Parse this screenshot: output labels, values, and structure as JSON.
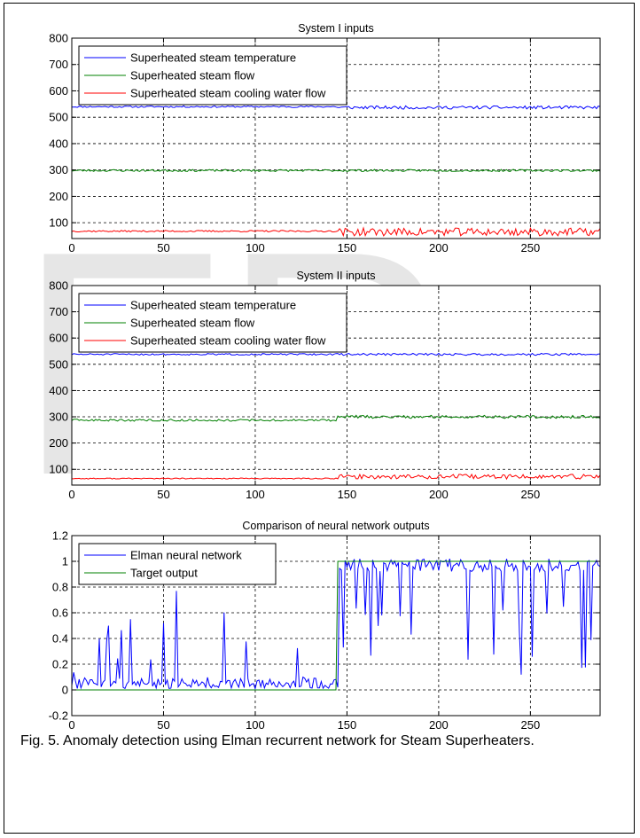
{
  "watermark": "ER",
  "caption": "Fig. 5. Anomaly detection using Elman recurrent network for Steam Superheaters.",
  "chart_data": [
    {
      "type": "line",
      "title": "System I inputs",
      "xlabel": "",
      "ylabel": "",
      "xlim": [
        0,
        288
      ],
      "ylim": [
        40,
        800
      ],
      "xticks": [
        0,
        50,
        100,
        150,
        200,
        250
      ],
      "yticks": [
        100,
        200,
        300,
        400,
        500,
        600,
        700,
        800
      ],
      "grid": true,
      "legend": "top-left",
      "series": [
        {
          "name": "Superheated steam temperature",
          "color": "#0000ff",
          "gen": {
            "base1": 540,
            "base2": 537,
            "noise1": 3,
            "noise2": 6,
            "seed": 11
          }
        },
        {
          "name": "Superheated steam flow",
          "color": "#008000",
          "gen": {
            "base1": 298,
            "base2": 298,
            "noise1": 4,
            "noise2": 4,
            "seed": 23
          }
        },
        {
          "name": "Superheated steam cooling water flow",
          "color": "#ff0000",
          "gen": {
            "base1": 68,
            "base2": 65,
            "noise1": 3,
            "noise2": 15,
            "seed": 37
          }
        }
      ]
    },
    {
      "type": "line",
      "title": "System II inputs",
      "xlabel": "",
      "ylabel": "",
      "xlim": [
        0,
        288
      ],
      "ylim": [
        40,
        800
      ],
      "xticks": [
        0,
        50,
        100,
        150,
        200,
        250
      ],
      "yticks": [
        100,
        200,
        300,
        400,
        500,
        600,
        700,
        800
      ],
      "grid": true,
      "legend": "top-left",
      "series": [
        {
          "name": "Superheated steam temperature",
          "color": "#0000ff",
          "gen": {
            "base1": 538,
            "base2": 538,
            "noise1": 3,
            "noise2": 4,
            "seed": 51
          }
        },
        {
          "name": "Superheated steam flow",
          "color": "#008000",
          "gen": {
            "base1": 287,
            "base2": 300,
            "noise1": 4,
            "noise2": 6,
            "seed": 63
          }
        },
        {
          "name": "Superheated steam cooling water flow",
          "color": "#ff0000",
          "gen": {
            "base1": 65,
            "base2": 72,
            "noise1": 2,
            "noise2": 9,
            "seed": 77
          }
        }
      ]
    },
    {
      "type": "line",
      "title": "Comparison of neural network outputs",
      "xlabel": "",
      "ylabel": "",
      "xlim": [
        0,
        288
      ],
      "ylim": [
        -0.2,
        1.2
      ],
      "xticks": [
        0,
        50,
        100,
        150,
        200,
        250
      ],
      "yticks": [
        -0.2,
        0,
        0.2,
        0.4,
        0.6,
        0.8,
        1,
        1.2
      ],
      "ytick_labels": [
        "-0.2",
        "0",
        "0.2",
        "0.4",
        "0.6",
        "0.8",
        "1",
        "1.2"
      ],
      "grid": true,
      "legend": "top-left",
      "series": [
        {
          "name": "Elman neural network",
          "color": "#0000ff",
          "gen": {
            "mode": "elman",
            "seed": 91
          }
        },
        {
          "name": "Target output",
          "color": "#008000",
          "x": [
            0,
            144,
            145,
            288
          ],
          "y": [
            0,
            0,
            1,
            1
          ]
        }
      ]
    }
  ]
}
